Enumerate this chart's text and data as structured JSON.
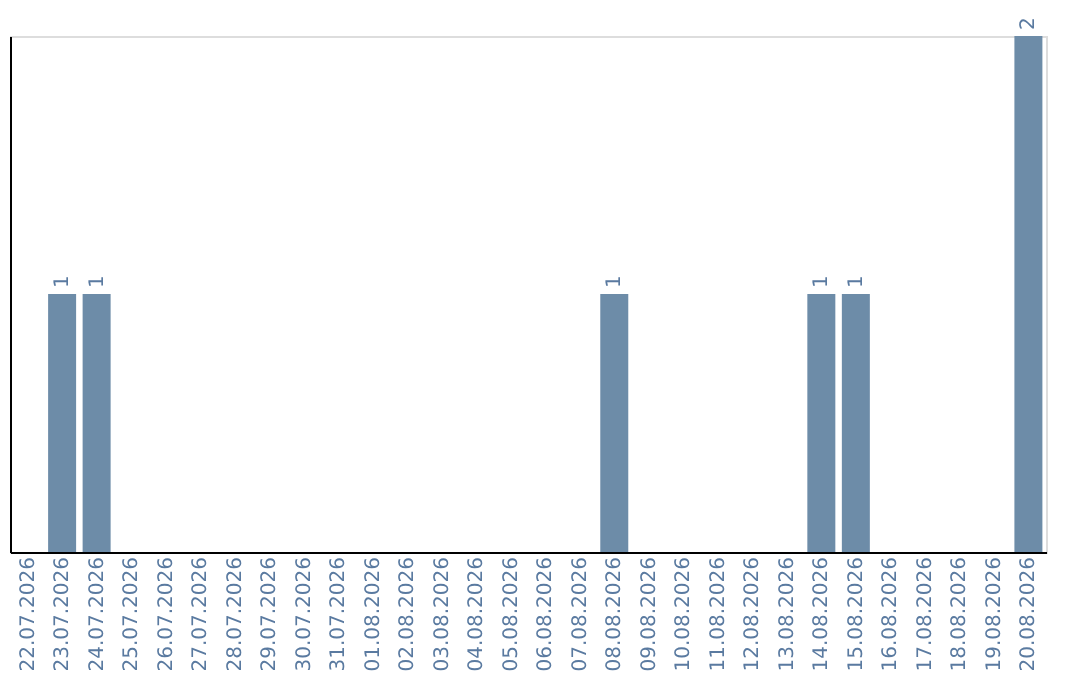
{
  "chart_data": {
    "type": "bar",
    "categories": [
      "22.07.2026",
      "23.07.2026",
      "24.07.2026",
      "25.07.2026",
      "26.07.2026",
      "27.07.2026",
      "28.07.2026",
      "29.07.2026",
      "30.07.2026",
      "31.07.2026",
      "01.08.2026",
      "02.08.2026",
      "03.08.2026",
      "04.08.2026",
      "05.08.2026",
      "06.08.2026",
      "07.08.2026",
      "08.08.2026",
      "09.08.2026",
      "10.08.2026",
      "11.08.2026",
      "12.08.2026",
      "13.08.2026",
      "14.08.2026",
      "15.08.2026",
      "16.08.2026",
      "17.08.2026",
      "18.08.2026",
      "19.08.2026",
      "20.08.2026"
    ],
    "values": [
      0,
      1,
      1,
      0,
      0,
      0,
      0,
      0,
      0,
      0,
      0,
      0,
      0,
      0,
      0,
      0,
      0,
      1,
      0,
      0,
      0,
      0,
      0,
      1,
      1,
      0,
      0,
      0,
      0,
      2
    ],
    "value_labels": [
      null,
      "1",
      "1",
      null,
      null,
      null,
      null,
      null,
      null,
      null,
      null,
      null,
      null,
      null,
      null,
      null,
      null,
      "1",
      null,
      null,
      null,
      null,
      null,
      "1",
      "1",
      null,
      null,
      null,
      null,
      "2"
    ],
    "color": "#6d8ca8",
    "tick_labels": "x",
    "grid": false
  }
}
